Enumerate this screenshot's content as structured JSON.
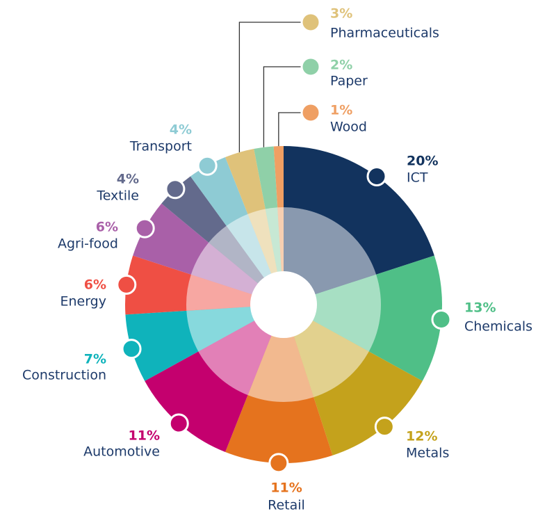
{
  "chart_data": {
    "type": "pie",
    "categories": [
      "ICT",
      "Chemicals",
      "Metals",
      "Retail",
      "Automotive",
      "Construction",
      "Energy",
      "Agri-food",
      "Textile",
      "Transport",
      "Pharmaceuticals",
      "Paper",
      "Wood"
    ],
    "values": [
      20,
      13,
      12,
      11,
      11,
      7,
      6,
      6,
      4,
      4,
      3,
      2,
      1
    ],
    "value_labels": [
      "20%",
      "13%",
      "12%",
      "11%",
      "11%",
      "7%",
      "6%",
      "6%",
      "4%",
      "4%",
      "3%",
      "2%",
      "1%"
    ],
    "colors": [
      "#12335e",
      "#4fbf87",
      "#c4a21c",
      "#e5731e",
      "#c4006e",
      "#0fb3bb",
      "#ef4f44",
      "#a960a8",
      "#636a8c",
      "#8ecbd4",
      "#dfc27a",
      "#8fd0a8",
      "#ef9f63"
    ]
  }
}
